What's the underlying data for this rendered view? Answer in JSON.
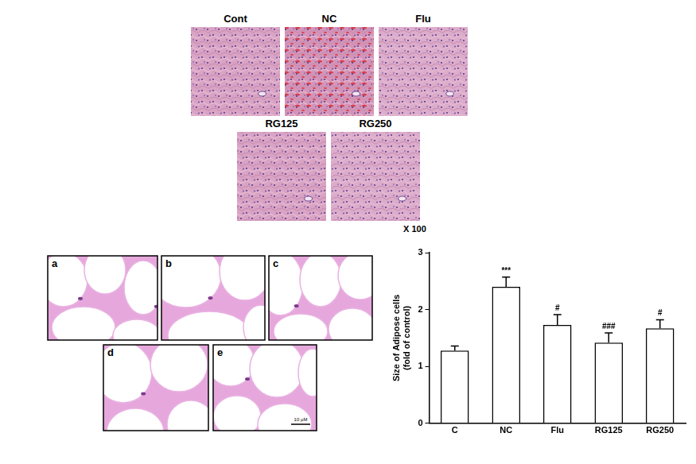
{
  "chart_data": {
    "type": "bar",
    "categories": [
      "C",
      "NC",
      "Flu",
      "RG125",
      "RG250"
    ],
    "values": [
      1.28,
      2.4,
      1.73,
      1.42,
      1.67
    ],
    "errors": [
      0.08,
      0.17,
      0.18,
      0.17,
      0.15
    ],
    "annotations": [
      null,
      "***",
      "#",
      "###",
      "#"
    ],
    "y_label": [
      "Size of Adipose cells",
      "(fold of control)"
    ],
    "ylim": [
      0,
      3
    ],
    "yticks": [
      0,
      1,
      2,
      3
    ],
    "color": "#ffffff",
    "grid": false
  },
  "micrographs": {
    "liver": {
      "panels": [
        "Cont",
        "NC",
        "Flu",
        "RG125",
        "RG250"
      ],
      "magnification": "X 100"
    },
    "adipose": {
      "panels": [
        "a",
        "b",
        "c",
        "d",
        "e"
      ],
      "scale_bar": "10 μM"
    }
  }
}
